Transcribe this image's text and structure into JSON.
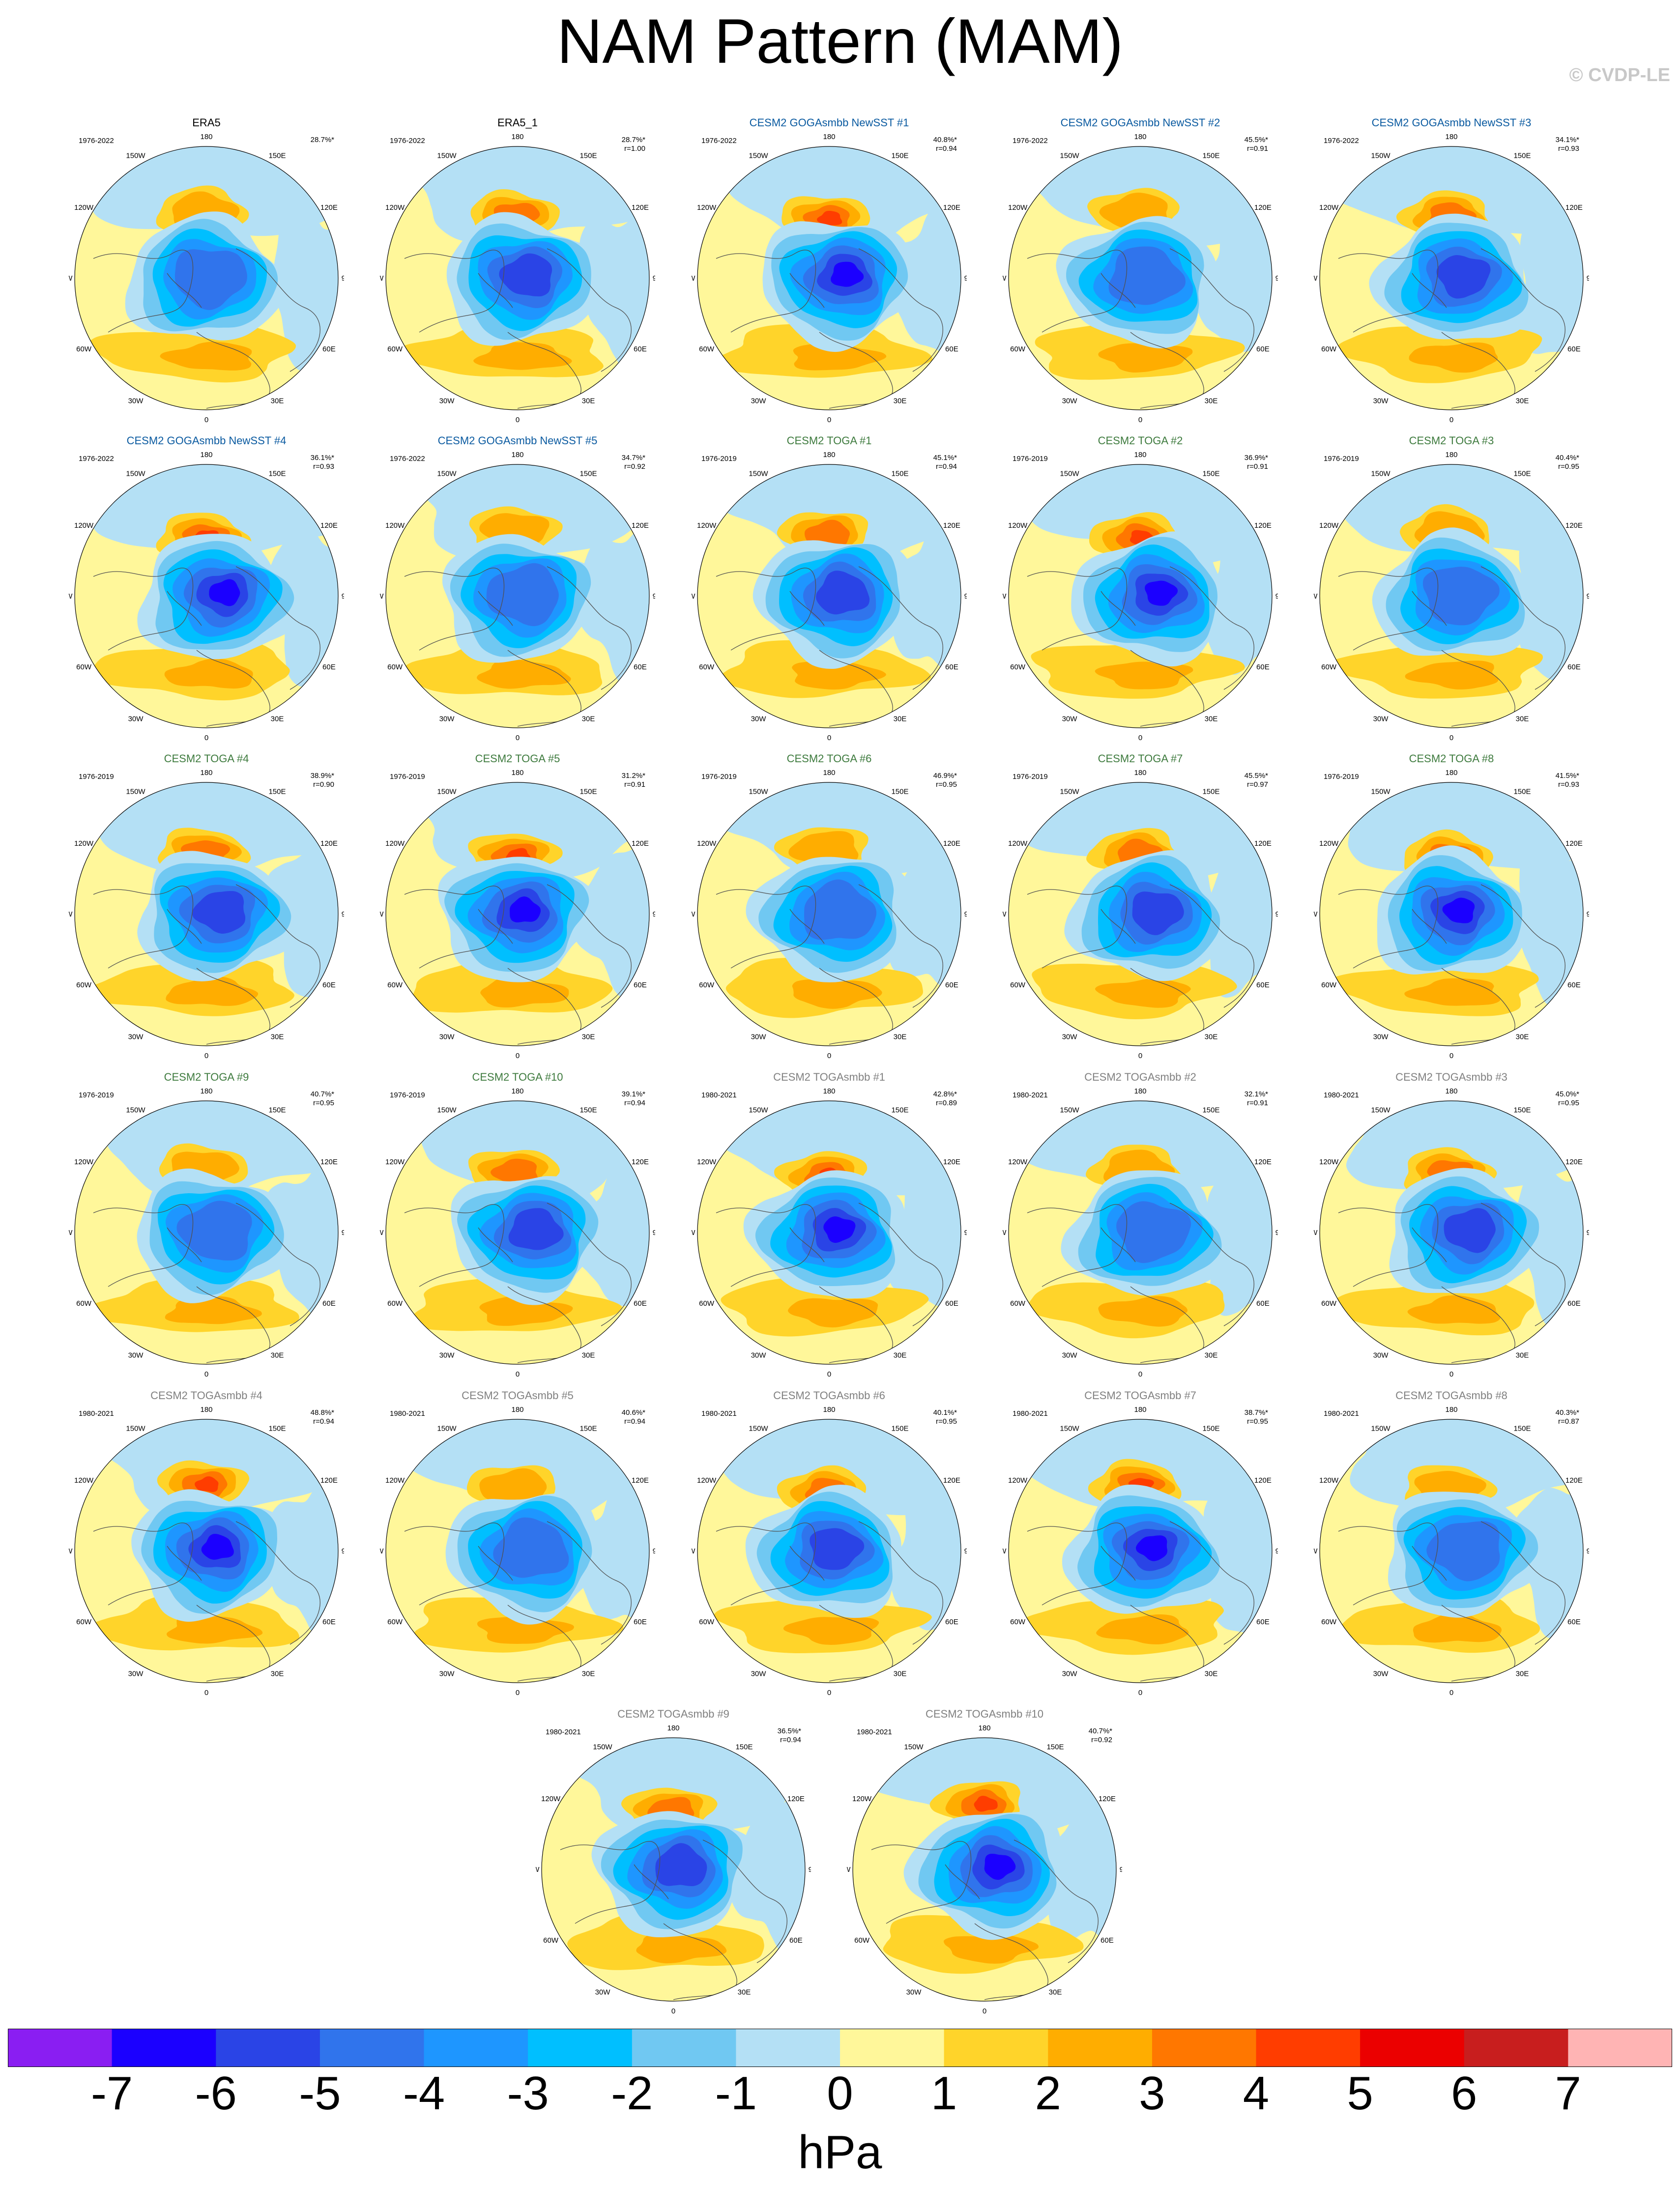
{
  "title": "NAM Pattern (MAM)",
  "credit": "© CVDP-LE",
  "colors": {
    "scale": [
      "#8a1ef2",
      "#1b00ff",
      "#2a44e6",
      "#3074ec",
      "#1e96ff",
      "#00bfff",
      "#70c8f2",
      "#b4e0f5",
      "#fff79a",
      "#ffd42a",
      "#ffad00",
      "#ff7700",
      "#ff3d00",
      "#eb0000",
      "#c81e1e",
      "#ffb4b4"
    ],
    "period_dark": "#000000",
    "gogasst": "#0a5aa0",
    "toga": "#3d7a3d",
    "togasmbb": "#808080",
    "coast": "#505050"
  },
  "chart_data": {
    "type": "polar-contour",
    "variable": "NAM pattern, sea level pressure regression",
    "season": "MAM",
    "colorbar": {
      "levels": [
        -7,
        -6,
        -5,
        -4,
        -3,
        -2,
        -1,
        0,
        1,
        2,
        3,
        4,
        5,
        6,
        7
      ],
      "units": "hPa"
    },
    "lon_labels": [
      "180",
      "150E",
      "120E",
      "90E",
      "60E",
      "30E",
      "0",
      "30W",
      "60W",
      "90W",
      "120W",
      "150W"
    ],
    "panels": [
      {
        "title": "ERA5",
        "group": "obs",
        "period": "1976-2022",
        "pct": "28.7%*",
        "r": ""
      },
      {
        "title": "ERA5_1",
        "group": "obs",
        "period": "1976-2022",
        "pct": "28.7%*",
        "r": "r=1.00"
      },
      {
        "title": "CESM2 GOGAsmbb NewSST #1",
        "group": "gogasst",
        "period": "1976-2022",
        "pct": "40.8%*",
        "r": "r=0.94"
      },
      {
        "title": "CESM2 GOGAsmbb NewSST #2",
        "group": "gogasst",
        "period": "1976-2022",
        "pct": "45.5%*",
        "r": "r=0.91"
      },
      {
        "title": "CESM2 GOGAsmbb NewSST #3",
        "group": "gogasst",
        "period": "1976-2022",
        "pct": "34.1%*",
        "r": "r=0.93"
      },
      {
        "title": "CESM2 GOGAsmbb NewSST #4",
        "group": "gogasst",
        "period": "1976-2022",
        "pct": "36.1%*",
        "r": "r=0.93"
      },
      {
        "title": "CESM2 GOGAsmbb NewSST #5",
        "group": "gogasst",
        "period": "1976-2022",
        "pct": "34.7%*",
        "r": "r=0.92"
      },
      {
        "title": "CESM2 TOGA #1",
        "group": "toga",
        "period": "1976-2019",
        "pct": "45.1%*",
        "r": "r=0.94"
      },
      {
        "title": "CESM2 TOGA #2",
        "group": "toga",
        "period": "1976-2019",
        "pct": "36.9%*",
        "r": "r=0.91"
      },
      {
        "title": "CESM2 TOGA #3",
        "group": "toga",
        "period": "1976-2019",
        "pct": "40.4%*",
        "r": "r=0.95"
      },
      {
        "title": "CESM2 TOGA #4",
        "group": "toga",
        "period": "1976-2019",
        "pct": "38.9%*",
        "r": "r=0.90"
      },
      {
        "title": "CESM2 TOGA #5",
        "group": "toga",
        "period": "1976-2019",
        "pct": "31.2%*",
        "r": "r=0.91"
      },
      {
        "title": "CESM2 TOGA #6",
        "group": "toga",
        "period": "1976-2019",
        "pct": "46.9%*",
        "r": "r=0.95"
      },
      {
        "title": "CESM2 TOGA #7",
        "group": "toga",
        "period": "1976-2019",
        "pct": "45.5%*",
        "r": "r=0.97"
      },
      {
        "title": "CESM2 TOGA #8",
        "group": "toga",
        "period": "1976-2019",
        "pct": "41.5%*",
        "r": "r=0.93"
      },
      {
        "title": "CESM2 TOGA #9",
        "group": "toga",
        "period": "1976-2019",
        "pct": "40.7%*",
        "r": "r=0.95"
      },
      {
        "title": "CESM2 TOGA #10",
        "group": "toga",
        "period": "1976-2019",
        "pct": "39.1%*",
        "r": "r=0.94"
      },
      {
        "title": "CESM2 TOGAsmbb #1",
        "group": "togasmbb",
        "period": "1980-2021",
        "pct": "42.8%*",
        "r": "r=0.89"
      },
      {
        "title": "CESM2 TOGAsmbb #2",
        "group": "togasmbb",
        "period": "1980-2021",
        "pct": "32.1%*",
        "r": "r=0.91"
      },
      {
        "title": "CESM2 TOGAsmbb #3",
        "group": "togasmbb",
        "period": "1980-2021",
        "pct": "45.0%*",
        "r": "r=0.95"
      },
      {
        "title": "CESM2 TOGAsmbb #4",
        "group": "togasmbb",
        "period": "1980-2021",
        "pct": "48.8%*",
        "r": "r=0.94"
      },
      {
        "title": "CESM2 TOGAsmbb #5",
        "group": "togasmbb",
        "period": "1980-2021",
        "pct": "40.6%*",
        "r": "r=0.94"
      },
      {
        "title": "CESM2 TOGAsmbb #6",
        "group": "togasmbb",
        "period": "1980-2021",
        "pct": "40.1%*",
        "r": "r=0.95"
      },
      {
        "title": "CESM2 TOGAsmbb #7",
        "group": "togasmbb",
        "period": "1980-2021",
        "pct": "38.7%*",
        "r": "r=0.95"
      },
      {
        "title": "CESM2 TOGAsmbb #8",
        "group": "togasmbb",
        "period": "1980-2021",
        "pct": "40.3%*",
        "r": "r=0.87"
      },
      {
        "title": "CESM2 TOGAsmbb #9",
        "group": "togasmbb",
        "period": "1980-2021",
        "pct": "36.5%*",
        "r": "r=0.94"
      },
      {
        "title": "CESM2 TOGAsmbb #10",
        "group": "togasmbb",
        "period": "1980-2021",
        "pct": "40.7%*",
        "r": "r=0.92"
      }
    ]
  }
}
